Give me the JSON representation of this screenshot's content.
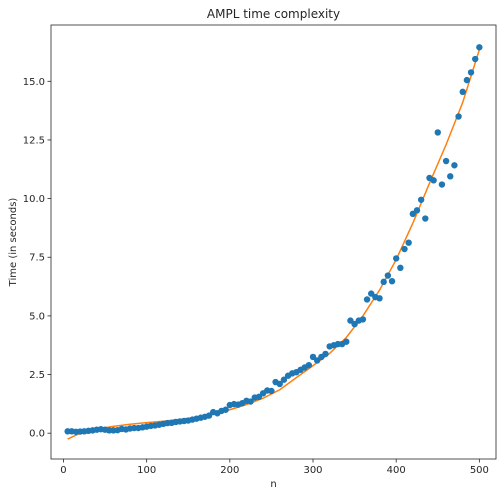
{
  "chart_data": {
    "type": "scatter",
    "title": "AMPL time complexity",
    "xlabel": "n",
    "ylabel": "Time (in seconds)",
    "xlim": [
      -15,
      520
    ],
    "ylim": [
      -1.1,
      17.4
    ],
    "xticks": [
      0,
      100,
      200,
      300,
      400,
      500
    ],
    "yticks": [
      0.0,
      2.5,
      5.0,
      7.5,
      10.0,
      12.5,
      15.0
    ],
    "ytick_labels": [
      "0.0",
      "2.5",
      "5.0",
      "7.5",
      "10.0",
      "12.5",
      "15.0"
    ],
    "grid": false,
    "colors": {
      "points": "#1f77b4",
      "fit": "#ff7f0e"
    },
    "series": [
      {
        "kind": "scatter",
        "x": [
          5,
          10,
          15,
          20,
          25,
          30,
          35,
          40,
          45,
          50,
          55,
          60,
          65,
          70,
          75,
          80,
          85,
          90,
          95,
          100,
          105,
          110,
          115,
          120,
          125,
          130,
          135,
          140,
          145,
          150,
          155,
          160,
          165,
          170,
          175,
          180,
          185,
          190,
          195,
          200,
          205,
          210,
          215,
          220,
          225,
          230,
          235,
          240,
          245,
          250,
          255,
          260,
          265,
          270,
          275,
          280,
          285,
          290,
          295,
          300,
          305,
          310,
          315,
          320,
          325,
          330,
          335,
          340,
          345,
          350,
          355,
          360,
          365,
          370,
          375,
          380,
          385,
          390,
          395,
          400,
          405,
          410,
          415,
          420,
          425,
          430,
          435,
          440,
          445,
          450,
          455,
          460,
          465,
          470,
          475,
          480,
          485,
          490,
          495,
          500
        ],
        "y": [
          0.08,
          0.08,
          0.06,
          0.07,
          0.08,
          0.1,
          0.12,
          0.15,
          0.17,
          0.15,
          0.12,
          0.12,
          0.13,
          0.18,
          0.16,
          0.2,
          0.22,
          0.22,
          0.25,
          0.28,
          0.31,
          0.33,
          0.36,
          0.4,
          0.43,
          0.44,
          0.48,
          0.5,
          0.52,
          0.54,
          0.58,
          0.62,
          0.66,
          0.7,
          0.75,
          0.9,
          0.85,
          0.95,
          1.0,
          1.2,
          1.24,
          1.22,
          1.28,
          1.38,
          1.35,
          1.52,
          1.55,
          1.7,
          1.82,
          1.8,
          2.18,
          2.1,
          2.28,
          2.45,
          2.55,
          2.6,
          2.7,
          2.8,
          2.9,
          3.25,
          3.1,
          3.25,
          3.38,
          3.7,
          3.75,
          3.8,
          3.8,
          3.9,
          4.8,
          4.65,
          4.8,
          4.85,
          5.7,
          5.95,
          5.8,
          5.75,
          6.45,
          6.72,
          6.48,
          7.45,
          7.05,
          7.85,
          8.12,
          9.35,
          9.5,
          9.95,
          9.15,
          10.88,
          10.78,
          12.82,
          10.6,
          11.6,
          10.95,
          11.42,
          13.5,
          14.55,
          15.05,
          15.38,
          15.95,
          16.45
        ]
      },
      {
        "kind": "line",
        "x": [
          5,
          20,
          40,
          60,
          80,
          100,
          120,
          140,
          160,
          180,
          200,
          220,
          240,
          260,
          280,
          300,
          320,
          340,
          360,
          380,
          400,
          420,
          440,
          460,
          480,
          500
        ],
        "y": [
          -0.25,
          0.0,
          0.18,
          0.29,
          0.38,
          0.45,
          0.51,
          0.59,
          0.68,
          0.81,
          1.0,
          1.22,
          1.49,
          1.85,
          2.37,
          2.88,
          3.4,
          4.08,
          5.0,
          6.1,
          7.4,
          8.95,
          10.65,
          12.3,
          14.1,
          16.35
        ]
      }
    ]
  }
}
